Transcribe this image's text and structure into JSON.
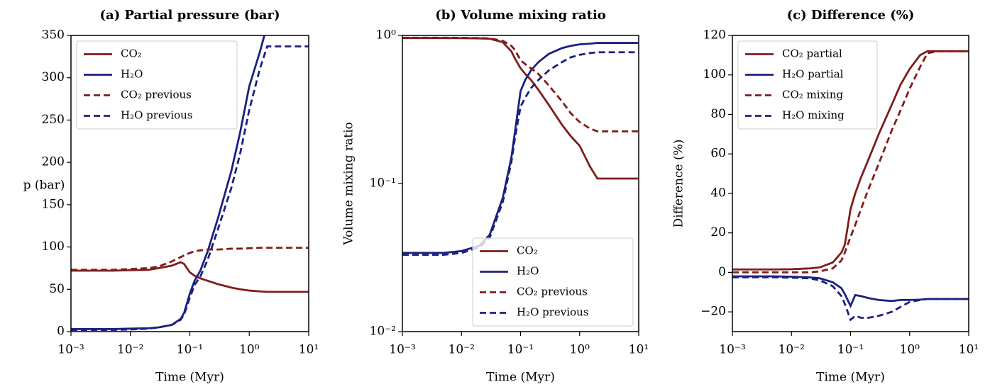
{
  "chart_data": [
    {
      "type": "line",
      "title": "(a) Partial pressure (bar)",
      "xlabel": "Time (Myr)",
      "ylabel": "p (bar)",
      "xscale": "log",
      "yscale": "linear",
      "legend": "upper left",
      "xlim": [
        0.001,
        10
      ],
      "ylim": [
        0,
        350
      ],
      "xticks": [
        {
          "value": 0.001,
          "label": "10⁻³"
        },
        {
          "value": 0.01,
          "label": "10⁻²"
        },
        {
          "value": 0.1,
          "label": "10⁻¹"
        },
        {
          "value": 1,
          "label": "10⁰"
        },
        {
          "value": 10,
          "label": "10¹"
        }
      ],
      "yticks": [
        0,
        50,
        100,
        150,
        200,
        250,
        300,
        350
      ],
      "x": [
        0.001,
        0.002,
        0.005,
        0.01,
        0.02,
        0.03,
        0.05,
        0.07,
        0.08,
        0.1,
        0.12,
        0.15,
        0.2,
        0.3,
        0.5,
        0.7,
        1,
        1.5,
        2,
        3,
        5,
        10
      ],
      "series": [
        {
          "name": "CO₂",
          "color": "#801c1c",
          "linestyle": "solid",
          "values": [
            72,
            72,
            72,
            72.5,
            73,
            75,
            78,
            82,
            80,
            70,
            66,
            63,
            60,
            56,
            52,
            50,
            48.5,
            47.5,
            47,
            47,
            47,
            47
          ]
        },
        {
          "name": "H₂O",
          "color": "#1c2080",
          "linestyle": "solid",
          "values": [
            3,
            3,
            3,
            3.5,
            4,
            5,
            8,
            15,
            22,
            45,
            60,
            72,
            95,
            135,
            190,
            235,
            290,
            330,
            362,
            362,
            362,
            362
          ]
        },
        {
          "name": "CO₂ previous",
          "color": "#801c1c",
          "linestyle": "dashed",
          "values": [
            73,
            73,
            73,
            74,
            75,
            77,
            83,
            88,
            90,
            93,
            95,
            96,
            97,
            97,
            98,
            98,
            98.5,
            99,
            99,
            99,
            99,
            99
          ]
        },
        {
          "name": "H₂O previous",
          "color": "#1c2080",
          "linestyle": "dashed",
          "values": [
            2,
            2,
            2,
            2.5,
            3.5,
            5,
            8,
            14,
            20,
            40,
            55,
            65,
            85,
            122,
            170,
            210,
            262,
            310,
            337,
            337,
            337,
            337
          ]
        }
      ]
    },
    {
      "type": "line",
      "title": "(b) Volume mixing ratio",
      "xlabel": "Time (Myr)",
      "ylabel": "Volume mixing ratio",
      "xscale": "log",
      "yscale": "log",
      "legend": "lower right",
      "xlim": [
        0.001,
        10
      ],
      "ylim": [
        0.01,
        1
      ],
      "xticks": [
        {
          "value": 0.001,
          "label": "10⁻³"
        },
        {
          "value": 0.01,
          "label": "10⁻²"
        },
        {
          "value": 0.1,
          "label": "10⁻¹"
        },
        {
          "value": 1,
          "label": "10⁰"
        },
        {
          "value": 10,
          "label": "10¹"
        }
      ],
      "yticks": [
        {
          "value": 0.01,
          "label": "10⁻²"
        },
        {
          "value": 0.1,
          "label": "10⁻¹"
        },
        {
          "value": 1,
          "label": "10⁰"
        }
      ],
      "x": [
        0.001,
        0.002,
        0.005,
        0.01,
        0.02,
        0.03,
        0.05,
        0.07,
        0.08,
        0.1,
        0.12,
        0.15,
        0.2,
        0.3,
        0.5,
        0.7,
        1,
        1.5,
        2,
        3,
        5,
        10
      ],
      "series": [
        {
          "name": "CO₂",
          "color": "#801c1c",
          "linestyle": "solid",
          "values": [
            0.96,
            0.96,
            0.96,
            0.958,
            0.955,
            0.95,
            0.9,
            0.78,
            0.7,
            0.6,
            0.55,
            0.5,
            0.43,
            0.34,
            0.25,
            0.21,
            0.18,
            0.13,
            0.108,
            0.108,
            0.108,
            0.108
          ]
        },
        {
          "name": "H₂O",
          "color": "#1c2080",
          "linestyle": "solid",
          "values": [
            0.034,
            0.034,
            0.034,
            0.035,
            0.038,
            0.045,
            0.08,
            0.15,
            0.22,
            0.42,
            0.5,
            0.58,
            0.66,
            0.75,
            0.82,
            0.85,
            0.87,
            0.88,
            0.89,
            0.89,
            0.89,
            0.89
          ]
        },
        {
          "name": "CO₂ previous",
          "color": "#801c1c",
          "linestyle": "dashed",
          "values": [
            0.965,
            0.965,
            0.965,
            0.963,
            0.96,
            0.955,
            0.92,
            0.85,
            0.8,
            0.68,
            0.64,
            0.6,
            0.55,
            0.46,
            0.36,
            0.3,
            0.26,
            0.235,
            0.225,
            0.225,
            0.225,
            0.225
          ]
        },
        {
          "name": "H₂O previous",
          "color": "#1c2080",
          "linestyle": "dashed",
          "values": [
            0.033,
            0.033,
            0.033,
            0.034,
            0.037,
            0.043,
            0.075,
            0.14,
            0.2,
            0.33,
            0.38,
            0.44,
            0.5,
            0.58,
            0.66,
            0.71,
            0.74,
            0.76,
            0.77,
            0.77,
            0.77,
            0.77
          ]
        }
      ]
    },
    {
      "type": "line",
      "title": "(c) Difference (%)",
      "xlabel": "Time (Myr)",
      "ylabel": "Difference (%)",
      "xscale": "log",
      "yscale": "linear",
      "legend": "upper left",
      "xlim": [
        0.001,
        10
      ],
      "ylim": [
        -30,
        120
      ],
      "xticks": [
        {
          "value": 0.001,
          "label": "10⁻³"
        },
        {
          "value": 0.01,
          "label": "10⁻²"
        },
        {
          "value": 0.1,
          "label": "10⁻¹"
        },
        {
          "value": 1,
          "label": "10⁰"
        },
        {
          "value": 10,
          "label": "10¹"
        }
      ],
      "yticks": [
        {
          "value": -20,
          "label": "−20"
        },
        0,
        20,
        40,
        60,
        80,
        100,
        120
      ],
      "x": [
        0.001,
        0.002,
        0.005,
        0.01,
        0.02,
        0.03,
        0.05,
        0.07,
        0.08,
        0.1,
        0.12,
        0.15,
        0.2,
        0.3,
        0.5,
        0.7,
        1,
        1.5,
        2,
        3,
        5,
        10
      ],
      "series": [
        {
          "name": "CO₂ partial",
          "color": "#801c1c",
          "linestyle": "solid",
          "values": [
            1.5,
            1.5,
            1.5,
            1.6,
            2,
            2.5,
            5,
            10,
            14,
            32,
            40,
            48,
            57,
            70,
            85,
            95,
            103,
            110,
            112,
            112,
            112,
            112
          ]
        },
        {
          "name": "H₂O partial",
          "color": "#1c2080",
          "linestyle": "solid",
          "values": [
            -2,
            -2,
            -2,
            -2.2,
            -2.5,
            -3,
            -5,
            -8,
            -11,
            -17,
            -11.5,
            -12,
            -13,
            -14,
            -14.5,
            -14,
            -14,
            -13.8,
            -13.5,
            -13.5,
            -13.5,
            -13.5
          ]
        },
        {
          "name": "CO₂ mixing",
          "color": "#801c1c",
          "linestyle": "dashed",
          "values": [
            0,
            0,
            0,
            0,
            0,
            0.5,
            2,
            6,
            10,
            18,
            24,
            32,
            42,
            55,
            72,
            82,
            93,
            104,
            111,
            112,
            112,
            112
          ]
        },
        {
          "name": "H₂O mixing",
          "color": "#1c2080",
          "linestyle": "dashed",
          "values": [
            -2.5,
            -2.5,
            -2.5,
            -2.7,
            -3,
            -4,
            -7,
            -12,
            -16,
            -24,
            -22,
            -23,
            -23,
            -22,
            -20,
            -17.5,
            -15,
            -14,
            -13.5,
            -13.5,
            -13.5,
            -13.5
          ]
        }
      ]
    }
  ]
}
